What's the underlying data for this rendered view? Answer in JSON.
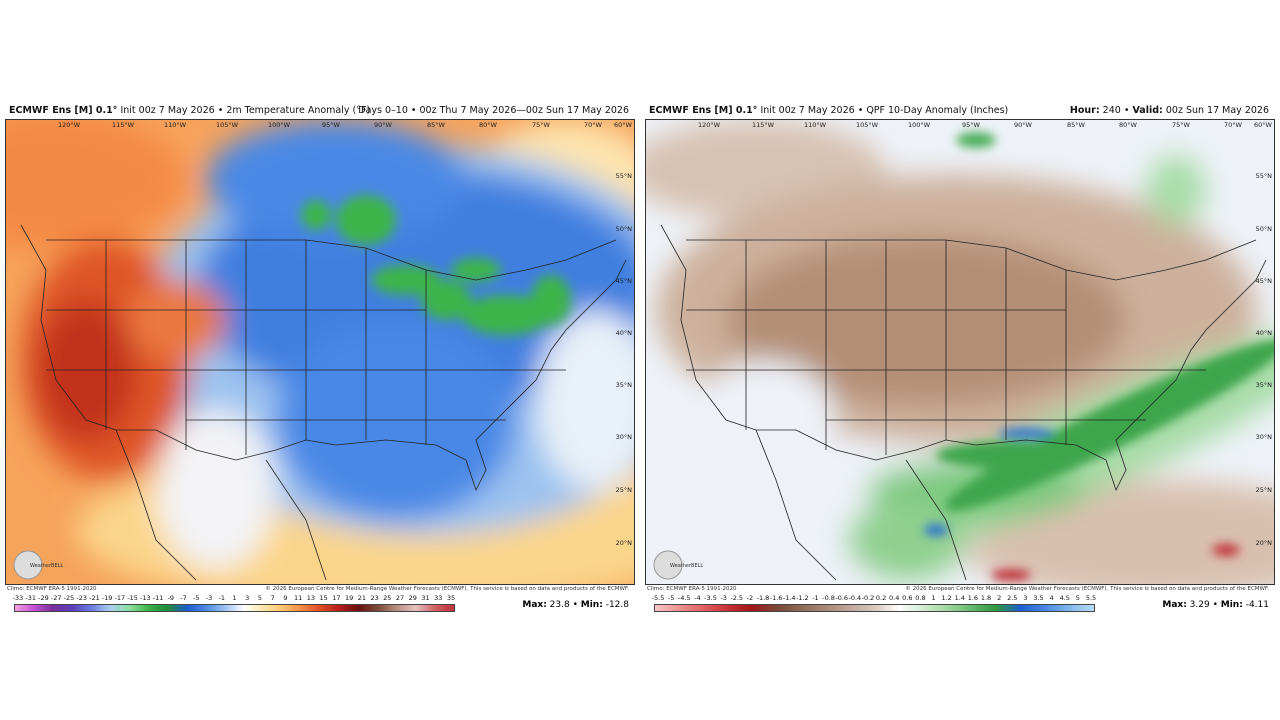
{
  "map_grid": {
    "longitudes": [
      "120°W",
      "115°W",
      "110°W",
      "105°W",
      "100°W",
      "95°W",
      "90°W",
      "85°W",
      "80°W",
      "75°W",
      "70°W",
      "60°W"
    ],
    "latitudes": [
      "55°N",
      "50°N",
      "45°N",
      "40°N",
      "35°N",
      "30°N",
      "25°N",
      "20°N"
    ]
  },
  "panels": [
    {
      "title": "ECMWF Ens [M] 0.1°",
      "subtitle": "Init 00z 7 May 2026 • 2m Temperature Anomaly (°F)",
      "header_right": "Days 0–10 • 00z Thu 7 May 2026—00z Sun 17 May 2026",
      "climo": "Climo: ECMWF ERA-5 1991-2020",
      "credit": "© 2026 European Centre for Medium-Range Weather Forecasts (ECMWF). This service is based on data and products of the ECMWF.",
      "logo": "WeatherBELL",
      "colorbar": [
        "-33",
        "-31",
        "-29",
        "-27",
        "-25",
        "-23",
        "-21",
        "-19",
        "-17",
        "-15",
        "-13",
        "-11",
        "-9",
        "-7",
        "-5",
        "-3",
        "-1",
        "1",
        "3",
        "5",
        "7",
        "9",
        "11",
        "13",
        "15",
        "17",
        "19",
        "21",
        "23",
        "25",
        "27",
        "29",
        "31",
        "33",
        "35"
      ],
      "max_label": "Max:",
      "max": "23.8 •",
      "min_label": "Min:",
      "min": "-12.8"
    },
    {
      "title": "ECMWF Ens [M] 0.1°",
      "subtitle": "Init 00z 7 May 2026 • QPF 10-Day Anomaly (Inches)",
      "hour_label": "Hour:",
      "hour": "240 •",
      "valid_label": "Valid:",
      "valid": "00z Sun 17 May 2026",
      "climo": "Climo: ECMWF ERA-5 1991-2020",
      "credit": "© 2026 European Centre for Medium-Range Weather Forecasts (ECMWF). This service is based on data and products of the ECMWF.",
      "logo": "WeatherBELL",
      "colorbar": [
        "-5.5",
        "-5",
        "-4.5",
        "-4",
        "-3.5",
        "-3",
        "-2.5",
        "-2",
        "-1.8",
        "-1.6",
        "-1.4",
        "-1.2",
        "-1",
        "-0.8",
        "-0.6",
        "-0.4",
        "-0.2",
        "0.2",
        "0.4",
        "0.6",
        "0.8",
        "1",
        "1.2",
        "1.4",
        "1.6",
        "1.8",
        "2",
        "2.5",
        "3",
        "3.5",
        "4",
        "4.5",
        "5",
        "5.5"
      ],
      "max_label": "Max:",
      "max": "3.29 •",
      "min_label": "Min:",
      "min": "-4.11"
    }
  ]
}
